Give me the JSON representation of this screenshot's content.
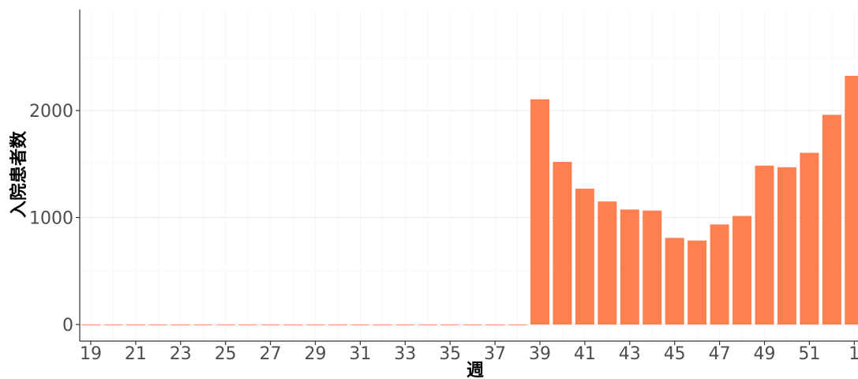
{
  "chart_data": {
    "type": "bar",
    "title": "",
    "xlabel": "週",
    "ylabel": "入院患者数",
    "x_ticks": [
      "19",
      "21",
      "23",
      "25",
      "27",
      "29",
      "31",
      "33",
      "35",
      "37",
      "39",
      "41",
      "43",
      "45",
      "47",
      "49",
      "51",
      "1"
    ],
    "y_ticks": [
      0,
      1000,
      2000
    ],
    "ylim": [
      0,
      2950
    ],
    "grid": true,
    "legend": "none",
    "bar_color": "#FF7F50",
    "categories": [
      "19",
      "20",
      "21",
      "22",
      "23",
      "24",
      "25",
      "26",
      "27",
      "28",
      "29",
      "30",
      "31",
      "32",
      "33",
      "34",
      "35",
      "36",
      "37",
      "38",
      "39",
      "40",
      "41",
      "42",
      "43",
      "44",
      "45",
      "46",
      "47",
      "48",
      "49",
      "50",
      "51",
      "52",
      "1"
    ],
    "values": [
      0,
      0,
      0,
      0,
      0,
      0,
      0,
      0,
      0,
      0,
      0,
      0,
      0,
      0,
      0,
      0,
      0,
      0,
      0,
      0,
      2105,
      1520,
      1270,
      1150,
      1075,
      1065,
      810,
      785,
      935,
      1015,
      1485,
      1470,
      1605,
      1960,
      2325
    ]
  }
}
